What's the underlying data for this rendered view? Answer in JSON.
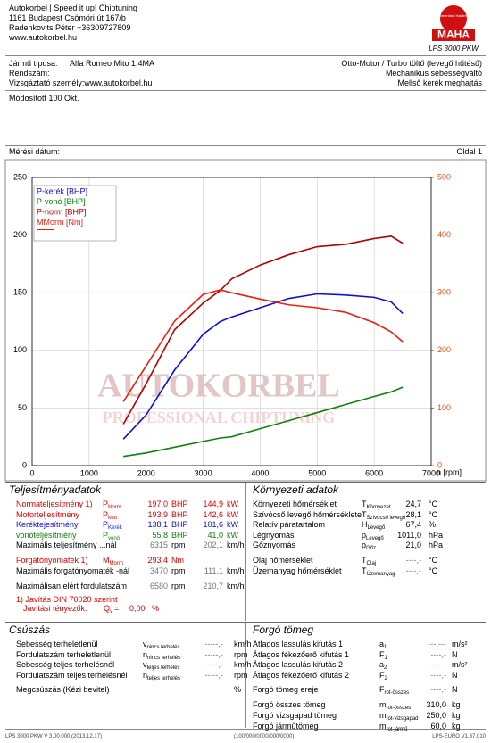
{
  "header": {
    "lines": [
      "Autokorbel | Speed it up! Chiptuning",
      "1161 Budapest Csömöri út 167/b",
      "Radenkovits Péter +36309727809",
      "www.autokorbel.hu"
    ],
    "logo_ring": "Maschinenbau Haldenwang",
    "brand": "MAHA",
    "model": "LPS 3000 PKW"
  },
  "vehicle": {
    "left": [
      {
        "label": "Jármű típusa:",
        "value": "Alfa Romeo Mito 1,4MA"
      },
      {
        "label": "Rendszám:"
      },
      {
        "label": "Vizsgáztató személy:",
        "value": "www.autokorbel.hu"
      }
    ],
    "right": [
      "Otto-Motor / Turbo töltő (levegő hűtésű)",
      "Mechanikus sebességváltó",
      "Mellső kerék meghajtás"
    ]
  },
  "note": "Módosított 100 Okt.",
  "measure_date": "Mérési dátum:",
  "page": "Oldal 1",
  "chart_data": {
    "type": "line",
    "xlabel": "n [rpm]",
    "watermark": [
      "AUTOKORBEL",
      "PROFESSIONAL CHIPTUNING"
    ],
    "x": [
      1600,
      2000,
      2500,
      3000,
      3300,
      3500,
      4000,
      4500,
      5000,
      5500,
      6000,
      6300,
      6500
    ],
    "xlim": [
      0,
      7000
    ],
    "xticks": [
      0,
      1000,
      2000,
      3000,
      4000,
      5000,
      6000,
      7000
    ],
    "ylim": [
      0,
      250
    ],
    "yticks": [
      0,
      50,
      100,
      150,
      200,
      250
    ],
    "y2lim": [
      0,
      500
    ],
    "y2ticks": [
      0,
      100,
      200,
      300,
      400,
      500
    ],
    "y2_color": "#e8501a",
    "grid": true,
    "legend": "upper left",
    "series": [
      {
        "name": "P-kerék [BHP]",
        "color": "#1010d0",
        "values": [
          23,
          44,
          83,
          114,
          125,
          129,
          137,
          145,
          149,
          148,
          146,
          142,
          132
        ]
      },
      {
        "name": "P-vonó [BHP]",
        "color": "#108010",
        "values": [
          8,
          11,
          16,
          21,
          24,
          25,
          32,
          39,
          46,
          53,
          60,
          64,
          68
        ]
      },
      {
        "name": "P-norm [BHP]",
        "color": "#b00000",
        "values": [
          36,
          71,
          118,
          141,
          152,
          162,
          174,
          183,
          190,
          192,
          197,
          199,
          193
        ]
      },
      {
        "name": "MMorm [Nm]",
        "color": "#e82010",
        "axis": "y2",
        "values": [
          111,
          173,
          251,
          297,
          305,
          300,
          289,
          279,
          274,
          266,
          248,
          232,
          215
        ]
      }
    ]
  },
  "performance": {
    "title": "Teljesítményadatok",
    "rows": [
      {
        "label": "Normateljesítmény 1)",
        "symbol": {
          "main": "P",
          "sub": "Norm"
        },
        "values": [
          "197,0",
          "144,9"
        ],
        "units": [
          "BHP",
          "kW"
        ],
        "color": "#e00000",
        "value_color": "#e00000"
      },
      {
        "label": "Motorteljesítmény",
        "symbol": {
          "main": "P",
          "sub": "Mot"
        },
        "values": [
          "193,9",
          "142,6"
        ],
        "units": [
          "BHP",
          "kW"
        ],
        "color": "#e00000",
        "value_color": "#e00000"
      },
      {
        "label": "Keréktejesítmény",
        "symbol": {
          "main": "P",
          "sub": "Kerék"
        },
        "values": [
          "138,1",
          "101,6"
        ],
        "units": [
          "BHP",
          "kW"
        ],
        "color": "#1010d0",
        "value_color": "#1010d0"
      },
      {
        "label": "vonóteljesítmény",
        "symbol": {
          "main": "P",
          "sub": "vonó"
        },
        "values": [
          "55,8",
          "41,0"
        ],
        "units": [
          "BHP",
          "kW"
        ],
        "color": "#108010",
        "value_color": "#108010"
      },
      {
        "label": "Maximális teljesítmény ...nál",
        "values": [
          "6315",
          "202,1"
        ],
        "units": [
          "rpm",
          "km/h"
        ],
        "color": "#000000",
        "value_color": "#777777"
      },
      {
        "label": "Forgatónyomaték 1)",
        "symbol": {
          "main": "M",
          "sub": "Morm"
        },
        "values": [
          "293,4"
        ],
        "units": [
          "Nm"
        ],
        "color": "#e00000",
        "value_color": "#e00000"
      },
      {
        "label": "Maximális forgatónyomaték -nál",
        "values": [
          "3470",
          "111,1"
        ],
        "units": [
          "rpm",
          "km/h"
        ],
        "color": "#000000",
        "value_color": "#777777"
      },
      {
        "label": "Maximálisan elért fordulatszám",
        "values": [
          "6580",
          "210,7"
        ],
        "units": [
          "rpm",
          "km/h"
        ],
        "color": "#000000",
        "value_color": "#777777"
      }
    ],
    "footnote": "1) Javítás DIN 70020 szerint",
    "correction": {
      "label": "Javítási tényezők:",
      "symbol": {
        "main": "Q",
        "sub": "v"
      },
      "eq": "=",
      "value": "0,00",
      "unit": "%"
    }
  },
  "environment": {
    "title": "Környezeti adatok",
    "rows": [
      {
        "label": "Környezeti hőmérséklet",
        "symbol": {
          "main": "T",
          "sub": "Környezet"
        },
        "value": "24,7",
        "unit": "°C"
      },
      {
        "label": "Szívócső levegő hőmérséklete",
        "symbol": {
          "main": "T",
          "sub": "Szívócső levegő"
        },
        "value": "28,1",
        "unit": "°C"
      },
      {
        "label": "Relatív páratartalom",
        "symbol": {
          "main": "H",
          "sub": "Levegő"
        },
        "value": "67,4",
        "unit": "%"
      },
      {
        "label": "Légnyomás",
        "symbol": {
          "main": "p",
          "sub": "Levegő"
        },
        "value": "1011,0",
        "unit": "hPa"
      },
      {
        "label": "Gőznyomás",
        "symbol": {
          "main": "p",
          "sub": "Gőz"
        },
        "value": "21,0",
        "unit": "hPa"
      },
      {
        "label": "Olaj hőmérséklet",
        "symbol": {
          "main": "T",
          "sub": "Olaj"
        },
        "value": "----,-",
        "unit": "°C"
      },
      {
        "label": "Üzemanyag hőmérséklet",
        "symbol": {
          "main": "T",
          "sub": "Üzemanyag"
        },
        "value": "----,-",
        "unit": "°C"
      }
    ]
  },
  "slip": {
    "title": "Csúszás",
    "rows": [
      {
        "label": "Sebesség terheletlenül",
        "symbol": {
          "main": "v",
          "sub": "nincs terhelés"
        },
        "value": "-----,-",
        "unit": "km/h"
      },
      {
        "label": "Fordulatszám terheletlenül",
        "symbol": {
          "main": "n",
          "sub": "nincs terhelés"
        },
        "value": "-----,-",
        "unit": "rpm"
      },
      {
        "label": "Sebesség teljes terhelésnél",
        "symbol": {
          "main": "v",
          "sub": "teljes terhelés"
        },
        "value": "-----,-",
        "unit": "km/h"
      },
      {
        "label": "Fordulatszám teljes terhelésnél",
        "symbol": {
          "main": "n",
          "sub": "teljes terhelés"
        },
        "value": "-----,-",
        "unit": "rpm"
      },
      {
        "label": "Megcsúszás (Kézi bevitel)",
        "unit": "%"
      }
    ]
  },
  "rotating_mass": {
    "title": "Forgó tömeg",
    "rows": [
      {
        "label": "Átlagos lassulás kifutás 1",
        "symbol": {
          "main": "a",
          "sub": "1"
        },
        "value": "---,---",
        "unit": "m/s²"
      },
      {
        "label": "Átlagos fékezőerő kifutás 1",
        "symbol": {
          "main": "F",
          "sub": "1"
        },
        "value": "----,-",
        "unit": "N"
      },
      {
        "label": "Átlagos lassulás kifutás 2",
        "symbol": {
          "main": "a",
          "sub": "2"
        },
        "value": "---,---",
        "unit": "m/s²"
      },
      {
        "label": "Átlagos fékezőerő kifutás 2",
        "symbol": {
          "main": "F",
          "sub": "2"
        },
        "value": "----,-",
        "unit": "N"
      },
      {
        "label": "Forgó tömeg ereje",
        "symbol": {
          "main": "F",
          "sub": "rot-összes"
        },
        "value": "----,-",
        "unit": "N"
      },
      {
        "label": "Forgó összes tömeg",
        "symbol": {
          "main": "m",
          "sub": "rot-összes"
        },
        "value": "310,0",
        "unit": "kg"
      },
      {
        "label": "Forgó vizsgapad tömeg",
        "symbol": {
          "main": "m",
          "sub": "rot-vizsgapad"
        },
        "value": "250,0",
        "unit": "kg"
      },
      {
        "label": "Forgó járműtömeg",
        "symbol": {
          "main": "m",
          "sub": "rot-jármű"
        },
        "value": "60,0",
        "unit": "kg"
      }
    ]
  },
  "footer": [
    "LPS 3000 PKW V 3.00.000 (2013.12.17)",
    "(100/000/0000/000/0000)",
    "LPS-EURO V1.37.010"
  ]
}
